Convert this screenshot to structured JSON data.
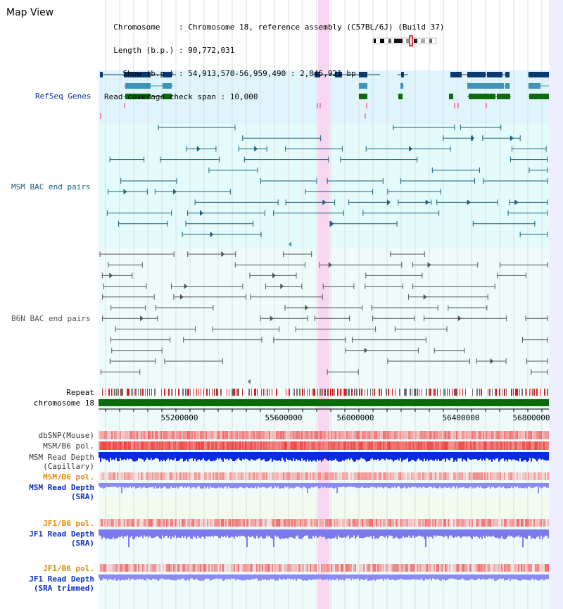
{
  "header": {
    "title": "Map View",
    "info_lines": [
      "  Chromosome    : Chromosome 18, reference assembly (C57BL/6J) (Build 37)",
      "  Length (b.p.) : 90,772,031",
      "    Show (b.p.) : 54,913,570-56,959,490 : 2,045,921 bp",
      "Read coverage check span : 10,000"
    ]
  },
  "tracks": {
    "refseq_genes": "RefSeq Genes",
    "msm_bac": "MSM BAC end pairs",
    "b6n_bac": "B6N BAC end pairs",
    "repeat": "Repeat",
    "chromosome": "chromosome 18",
    "dbsnp": "dbSNP(Mouse)",
    "msm_b6_pol": "MSM/B6 pol.",
    "msm_depth_cap_1": "MSM Read Depth",
    "msm_depth_cap_2": "(Capillary)",
    "msm_b6_pol2": "MSM/B6 pol.",
    "msm_depth_sra_1": "MSM Read Depth",
    "msm_depth_sra_2": "(SRA)",
    "jf1_b6_pol": "JF1/B6 pol.",
    "jf1_depth_sra_1": "JF1 Read Depth",
    "jf1_depth_sra_2": "(SRA)",
    "jf1_b6_pol2": "JF1/B6 pol.",
    "jf1_depth_trim_1": "JF1 Read Depth",
    "jf1_depth_trim_2": "(SRA trimmed)"
  },
  "axis": {
    "ticks": [
      "55200000",
      "55600000",
      "56000000",
      "56400000",
      "56800000"
    ]
  },
  "colors": {
    "refseq_bg": "#dff4fb",
    "msm_bg": "#e4fbfb",
    "lower_bg": "#effbfb",
    "highlight": "#f6d6f0",
    "gene_dark": "#0d3a6e",
    "gene_mid": "#3f93b6",
    "gene_green": "#0b6b0b",
    "msm_line": "#1c5f7a",
    "b6n_line": "#555555",
    "chromosome": "#0b6b0b"
  }
}
